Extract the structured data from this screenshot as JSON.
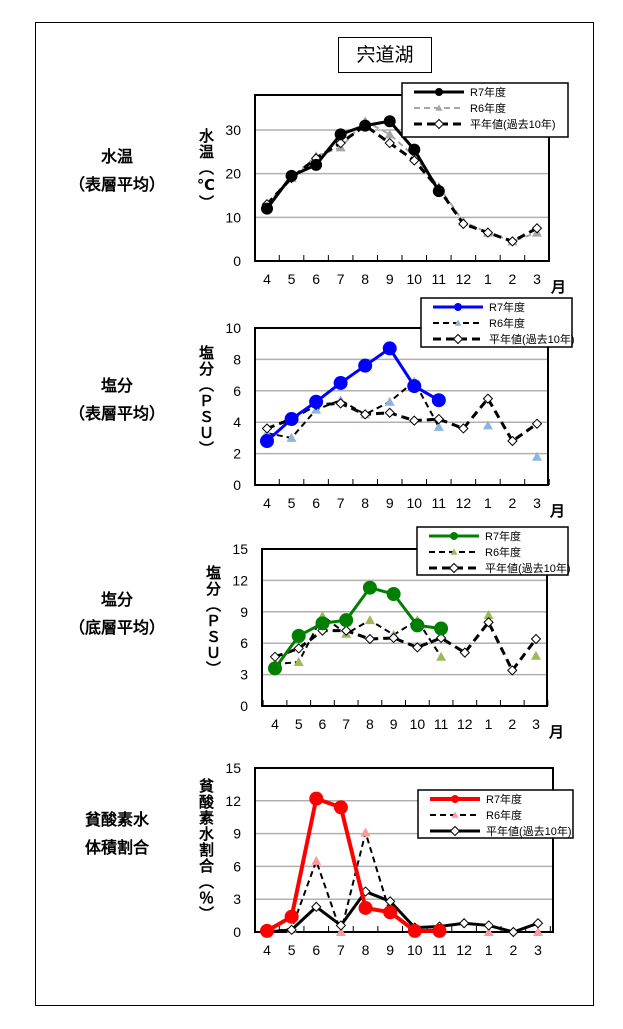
{
  "title": "宍道湖",
  "month_unit": "月",
  "legend_labels": [
    "R7年度",
    "R6年度",
    "平年値(過去10年)"
  ],
  "chart_data": [
    {
      "type": "line",
      "left_label": [
        "水温",
        "（表層平均）"
      ],
      "ylabel": "水温（℃）",
      "categories": [
        "4",
        "5",
        "6",
        "7",
        "8",
        "9",
        "10",
        "11",
        "12",
        "1",
        "2",
        "3"
      ],
      "ylim": [
        0,
        38
      ],
      "yticks": [
        0,
        10,
        20,
        30
      ],
      "grid": true,
      "legend": "top-right",
      "colors": {
        "r7": "#000000",
        "r6": "#a6a6a6",
        "avg": "#000000"
      },
      "series": [
        {
          "name": "R7年度",
          "values": [
            12,
            19.5,
            22,
            29,
            31,
            32,
            25.5,
            16,
            null,
            null,
            null,
            null
          ]
        },
        {
          "name": "R6年度",
          "values": [
            13,
            19,
            24,
            26,
            32,
            29,
            24,
            17,
            9,
            6.5,
            4.5,
            6.5
          ]
        },
        {
          "name": "平年値(過去10年)",
          "values": [
            13,
            19,
            23.5,
            27,
            31,
            27,
            23,
            16.5,
            8.5,
            6.5,
            4.5,
            7.5
          ]
        }
      ]
    },
    {
      "type": "line",
      "left_label": [
        "塩分",
        "（表層平均）"
      ],
      "ylabel": "塩分（ＰＳＵ）",
      "categories": [
        "4",
        "5",
        "6",
        "7",
        "8",
        "9",
        "10",
        "11",
        "12",
        "1",
        "2",
        "3"
      ],
      "ylim": [
        0,
        10
      ],
      "yticks": [
        0,
        2,
        4,
        6,
        8,
        10
      ],
      "grid": true,
      "legend": "top-right",
      "colors": {
        "r7": "#0000ff",
        "r6": "#8db4e2",
        "avg": "#000000"
      },
      "series": [
        {
          "name": "R7年度",
          "values": [
            2.8,
            4.2,
            5.3,
            6.5,
            7.6,
            8.7,
            6.3,
            5.4,
            null,
            null,
            null,
            null
          ]
        },
        {
          "name": "R6年度",
          "values": [
            3.3,
            3.0,
            4.8,
            5.4,
            4.5,
            5.3,
            6.6,
            3.7,
            null,
            3.8,
            null,
            1.8
          ]
        },
        {
          "name": "平年値(過去10年)",
          "values": [
            3.6,
            4.2,
            5.1,
            5.2,
            4.5,
            4.6,
            4.1,
            4.2,
            3.6,
            5.5,
            2.8,
            3.9
          ]
        }
      ]
    },
    {
      "type": "line",
      "left_label": [
        "塩分",
        "（底層平均）"
      ],
      "ylabel": "塩分（ＰＳＵ）",
      "categories": [
        "4",
        "5",
        "6",
        "7",
        "8",
        "9",
        "10",
        "11",
        "12",
        "1",
        "2",
        "3"
      ],
      "ylim": [
        0,
        15
      ],
      "yticks": [
        0,
        3,
        6,
        9,
        12,
        15
      ],
      "grid": true,
      "legend": "top-right",
      "colors": {
        "r7": "#008000",
        "r6": "#9bbb59",
        "avg": "#000000"
      },
      "series": [
        {
          "name": "R7年度",
          "values": [
            3.6,
            6.7,
            7.9,
            8.2,
            11.3,
            10.7,
            7.7,
            7.4,
            null,
            null,
            null,
            null
          ]
        },
        {
          "name": "R6年度",
          "values": [
            4.0,
            4.2,
            8.6,
            6.9,
            8.2,
            6.8,
            8.2,
            4.7,
            null,
            8.7,
            null,
            4.8
          ]
        },
        {
          "name": "平年値(過去10年)",
          "values": [
            4.7,
            5.5,
            7.2,
            7.2,
            6.4,
            6.5,
            5.6,
            6.5,
            5.1,
            8.0,
            3.4,
            6.4
          ]
        }
      ]
    },
    {
      "type": "line",
      "left_label": [
        "貧酸素水",
        "体積割合"
      ],
      "ylabel": "貧酸素水割合（％）",
      "categories": [
        "4",
        "5",
        "6",
        "7",
        "8",
        "9",
        "10",
        "11",
        "12",
        "1",
        "2",
        "3"
      ],
      "ylim": [
        0,
        15
      ],
      "yticks": [
        0,
        3,
        6,
        9,
        12,
        15
      ],
      "grid": true,
      "legend": "top-right",
      "colors": {
        "r7": "#ff0000",
        "r6": "#ff9999",
        "avg": "#000000"
      },
      "series": [
        {
          "name": "R7年度",
          "values": [
            0.1,
            1.4,
            12.2,
            11.4,
            2.2,
            1.8,
            0.1,
            0.1,
            null,
            null,
            null,
            null
          ]
        },
        {
          "name": "R6年度",
          "values": [
            0,
            0.3,
            6.5,
            0,
            9.1,
            1.7,
            0.2,
            0,
            null,
            0,
            null,
            0
          ]
        },
        {
          "name": "平年値(過去10年)",
          "values": [
            0,
            0.2,
            2.3,
            0.6,
            3.7,
            2.8,
            0.4,
            0.5,
            0.8,
            0.6,
            0,
            0.8
          ]
        }
      ]
    }
  ]
}
